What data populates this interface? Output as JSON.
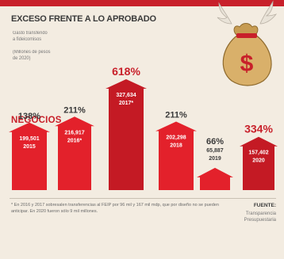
{
  "header": {
    "title": "EXCESO FRENTE A LO APROBADO",
    "note_transfer": "Gasto transferido\na fideicomisos",
    "note_units": "(Millones de pesos\nde 2020)"
  },
  "section_label": "NEGOCIOS",
  "chart_data": {
    "type": "bar",
    "title": "EXCESO FRENTE A LO APROBADO",
    "ylabel": "Millones de pesos de 2020",
    "categories": [
      "2015",
      "2016*",
      "2017*",
      "2018",
      "2019",
      "2020"
    ],
    "values": [
      199501,
      216917,
      327634,
      202298,
      65887,
      157402
    ],
    "value_labels": [
      "199,501",
      "216,917",
      "327,634",
      "202,298",
      "65,887",
      "157,402"
    ],
    "percent_labels": [
      "138%",
      "211%",
      "618%",
      "211%",
      "66%",
      "334%"
    ],
    "percents": [
      138,
      211,
      618,
      211,
      66,
      334
    ],
    "ylim": [
      0,
      700
    ],
    "grid": false,
    "legend": "none",
    "colors": {
      "bar": "#e3212b",
      "bar_highlight": "#c41a24",
      "accent": "#c8202a",
      "text": "#3a3a3a"
    }
  },
  "footer": {
    "footnote": "* En 2016 y 2017 sobresalen transferencias al FEIP por 96 mil y 167 mil mdp, que por diseño no se pueden anticipar. En 2020 fueron sólo 9 mil millones.",
    "source_label": "FUENTE:",
    "source_value": "Transparencia Presupuestaria"
  },
  "icons": {
    "moneybag": "money-bag-icon"
  }
}
